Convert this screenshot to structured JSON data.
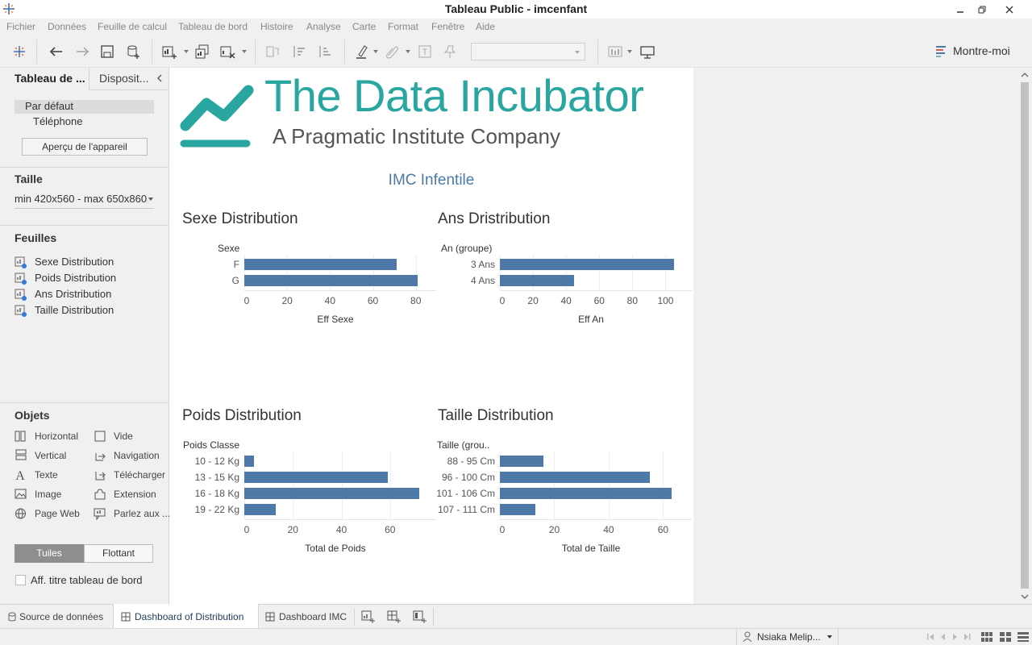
{
  "window": {
    "title": "Tableau Public - imcenfant"
  },
  "menu": [
    "Fichier",
    "Données",
    "Feuille de calcul",
    "Tableau de bord",
    "Histoire",
    "Analyse",
    "Carte",
    "Format",
    "Fenêtre",
    "Aide"
  ],
  "toolbar": {
    "show_me": "Montre-moi"
  },
  "left_panel": {
    "tab_dashboard": "Tableau de ...",
    "tab_layout": "Disposit...",
    "devices": {
      "default": "Par défaut",
      "phone": "Téléphone",
      "preview_button": "Aperçu de l'appareil"
    },
    "size": {
      "heading": "Taille",
      "value": "min 420x560 - max 650x860"
    },
    "sheets": {
      "heading": "Feuilles",
      "items": [
        "Sexe Distribution",
        "Poids Distribution",
        "Ans Dristribution",
        "Taille Distribution"
      ]
    },
    "objects": {
      "heading": "Objets",
      "items": [
        "Horizontal",
        "Vide",
        "Vertical",
        "Navigation",
        "Texte",
        "Télécharger",
        "Image",
        "Extension",
        "Page Web",
        "Parlez aux ..."
      ]
    },
    "tiles": "Tuiles",
    "floating": "Flottant",
    "show_title": "Aff. titre tableau de bord"
  },
  "dashboard": {
    "logo": {
      "name": "The Data Incubator",
      "tagline": "A Pragmatic Institute Company"
    },
    "heading": "IMC Infentile"
  },
  "chart_data": [
    {
      "type": "bar",
      "title": "Sexe Distribution",
      "row_header": "Sexe",
      "categories": [
        "F",
        "G"
      ],
      "values": [
        71,
        81
      ],
      "xlabel": "Eff Sexe",
      "xticks": [
        "0",
        "20",
        "40",
        "60",
        "80"
      ],
      "xlim": [
        0,
        85
      ]
    },
    {
      "type": "bar",
      "title": "Ans Dristribution",
      "row_header": "An (groupe)",
      "categories": [
        "3 Ans",
        "4 Ans"
      ],
      "values": [
        105,
        45
      ],
      "xlabel": "Eff An",
      "xticks": [
        "0",
        "20",
        "40",
        "60",
        "80",
        "100"
      ],
      "xlim": [
        0,
        110
      ]
    },
    {
      "type": "bar",
      "title": "Poids Distribution",
      "row_header": "Poids Classe",
      "categories": [
        "10 - 12 Kg",
        "13 - 15 Kg",
        "16 - 18 Kg",
        "19 - 22 Kg"
      ],
      "values": [
        4,
        59,
        72,
        13
      ],
      "xlabel": "Total de Poids",
      "xticks": [
        "0",
        "20",
        "40",
        "60"
      ],
      "xlim": [
        0,
        75
      ]
    },
    {
      "type": "bar",
      "title": "Taille Distribution",
      "row_header": "Taille (grou..",
      "categories": [
        "88 - 95 Cm",
        "96 - 100 Cm",
        "101 - 106 Cm",
        "107 - 111 Cm"
      ],
      "values": [
        16,
        55,
        63,
        13
      ],
      "xlabel": "Total de Taille",
      "xticks": [
        "0",
        "20",
        "40",
        "60"
      ],
      "xlim": [
        0,
        67
      ]
    }
  ],
  "bottom_tabs": {
    "data_source": "Source de données",
    "tab1": "Dashboard of Distribution",
    "tab2": "Dashboard IMC"
  },
  "status": {
    "user": "Nsiaka Melip..."
  },
  "colors": {
    "bar": "#4e79a7",
    "logo": "#2aa6a0",
    "heading": "#4e79a7"
  }
}
